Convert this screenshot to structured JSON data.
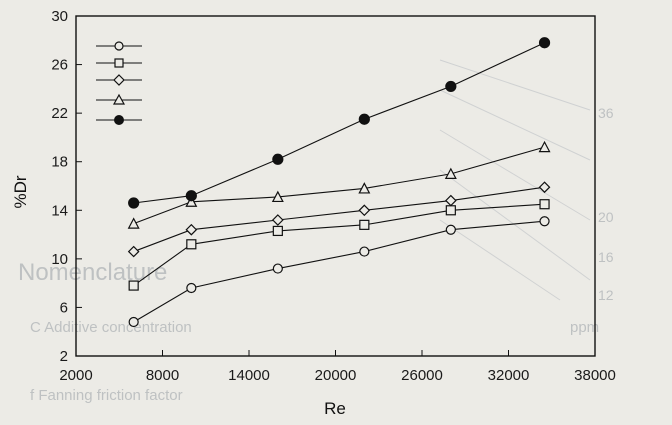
{
  "chart_data": {
    "type": "line",
    "xlabel": "Re",
    "ylabel": "%Dr",
    "xlim": [
      2000,
      38000
    ],
    "ylim": [
      2,
      30
    ],
    "xticks": [
      2000,
      8000,
      14000,
      20000,
      26000,
      32000,
      38000
    ],
    "yticks": [
      2,
      6,
      10,
      14,
      18,
      22,
      26,
      30
    ],
    "legend_position": "top-left",
    "grid": false,
    "series": [
      {
        "marker": "circle-open",
        "x": [
          6000,
          10000,
          16000,
          22000,
          28000,
          34500
        ],
        "y": [
          4.8,
          7.6,
          9.2,
          10.6,
          12.4,
          13.1
        ]
      },
      {
        "marker": "square-open",
        "x": [
          6000,
          10000,
          16000,
          22000,
          28000,
          34500
        ],
        "y": [
          7.8,
          11.2,
          12.3,
          12.8,
          14.0,
          14.5
        ]
      },
      {
        "marker": "diamond-open",
        "x": [
          6000,
          10000,
          16000,
          22000,
          28000,
          34500
        ],
        "y": [
          10.6,
          12.4,
          13.2,
          14.0,
          14.8,
          15.9
        ]
      },
      {
        "marker": "triangle-open",
        "x": [
          6000,
          10000,
          16000,
          22000,
          28000,
          34500
        ],
        "y": [
          12.9,
          14.7,
          15.1,
          15.8,
          17.0,
          19.2
        ]
      },
      {
        "marker": "circle-filled",
        "x": [
          6000,
          10000,
          16000,
          22000,
          28000,
          34500
        ],
        "y": [
          14.6,
          15.2,
          18.2,
          21.5,
          24.2,
          27.8
        ]
      }
    ]
  },
  "background_text": [
    "Nomenclature",
    "C Additive concentration",
    "ppm",
    "f Fanning friction factor",
    "36",
    "20",
    "16",
    "12"
  ],
  "colors": {
    "paper": "#ecebe6",
    "ink": "#111111",
    "bleed": "#9aa0a6"
  }
}
